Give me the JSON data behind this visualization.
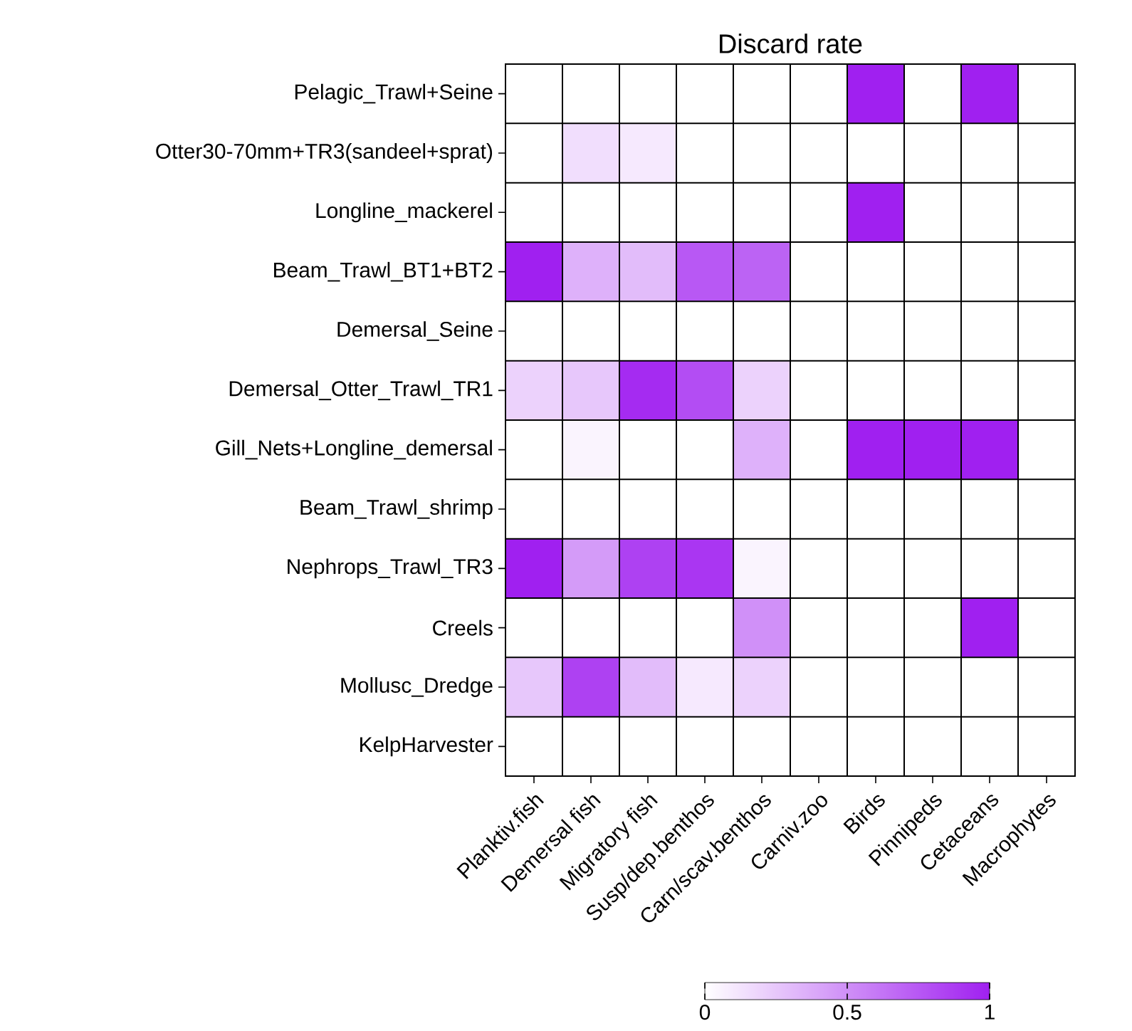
{
  "chart_data": {
    "type": "heatmap",
    "title": "Discard rate",
    "categories": [
      "Planktiv.fish",
      "Demersal fish",
      "Migratory fish",
      "Susp/dep.benthos",
      "Carn/scav.benthos",
      "Carniv.zoo",
      "Birds",
      "Pinnipeds",
      "Cetaceans",
      "Macrophytes"
    ],
    "y_categories": [
      "Pelagic_Trawl+Seine",
      "Otter30-70mm+TR3(sandeel+sprat)",
      "Longline_mackerel",
      "Beam_Trawl_BT1+BT2",
      "Demersal_Seine",
      "Demersal_Otter_Trawl_TR1",
      "Gill_Nets+Longline_demersal",
      "Beam_Trawl_shrimp",
      "Nephrops_Trawl_TR3",
      "Creels",
      "Mollusc_Dredge",
      "KelpHarvester"
    ],
    "cells": [
      [
        0,
        0,
        0,
        0,
        0,
        0,
        1,
        0,
        1,
        0
      ],
      [
        0,
        0.15,
        0.1,
        0,
        0,
        0,
        0,
        0,
        0,
        0
      ],
      [
        0,
        0,
        0,
        0,
        0,
        0,
        1,
        0,
        0,
        0
      ],
      [
        1,
        0.35,
        0.3,
        0.75,
        0.7,
        0,
        0,
        0,
        0,
        0
      ],
      [
        0,
        0,
        0,
        0,
        0,
        0,
        0,
        0,
        0,
        0
      ],
      [
        0.2,
        0.25,
        0.95,
        0.8,
        0.2,
        0,
        0,
        0,
        0,
        0
      ],
      [
        0,
        0.05,
        0,
        0,
        0.35,
        0,
        1,
        1,
        1,
        0
      ],
      [
        0,
        0,
        0,
        0,
        0,
        0,
        0,
        0,
        0,
        0
      ],
      [
        1,
        0.45,
        0.85,
        0.9,
        0.05,
        0,
        0,
        0,
        0,
        0
      ],
      [
        0,
        0,
        0,
        0,
        0.5,
        0,
        0,
        0,
        1,
        0
      ],
      [
        0.25,
        0.85,
        0.3,
        0.1,
        0.2,
        0,
        0,
        0,
        0,
        0
      ],
      [
        0,
        0,
        0,
        0,
        0,
        0,
        0,
        0,
        0,
        0
      ]
    ],
    "grid": true,
    "clim": [
      0,
      1
    ],
    "cticks": [
      0,
      0.5,
      1
    ]
  }
}
